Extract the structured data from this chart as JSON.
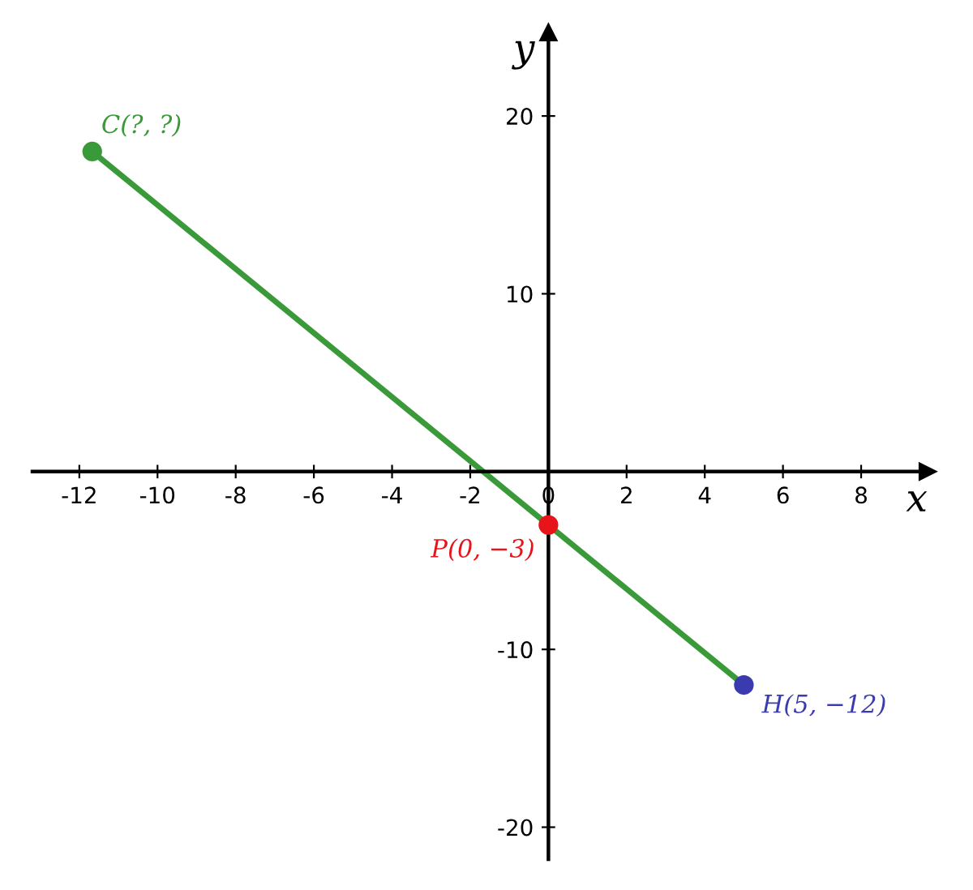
{
  "chart_data": {
    "type": "line",
    "xlabel": "x",
    "ylabel": "y",
    "series": [
      {
        "color": "#3a9a3a",
        "x": [
          -11.67,
          5
        ],
        "values": [
          18,
          -12
        ]
      },
      {
        "type": "scatter",
        "marker": "circle",
        "colors": [
          "#3a9a3a",
          "#e8141c",
          "#3b3bb0"
        ],
        "x": [
          -11.67,
          0,
          5
        ],
        "values": [
          18,
          -3,
          -12
        ]
      }
    ],
    "annotations": [
      {
        "text": "C(?, ?)",
        "x": -11.67,
        "y": 18
      },
      {
        "text": "P(0, −3)",
        "x": 0,
        "y": -3
      },
      {
        "text": "H(5, −12)",
        "x": 5,
        "y": -12
      }
    ],
    "xlim": [
      -13.2,
      9.7
    ],
    "ylim": [
      -21.8,
      24.7
    ],
    "xticks": [
      -12,
      -10,
      -8,
      -6,
      -4,
      -2,
      0,
      2,
      4,
      6,
      8
    ],
    "yticks": [
      -20,
      -10,
      10,
      20
    ],
    "grid": false,
    "legend": false
  }
}
